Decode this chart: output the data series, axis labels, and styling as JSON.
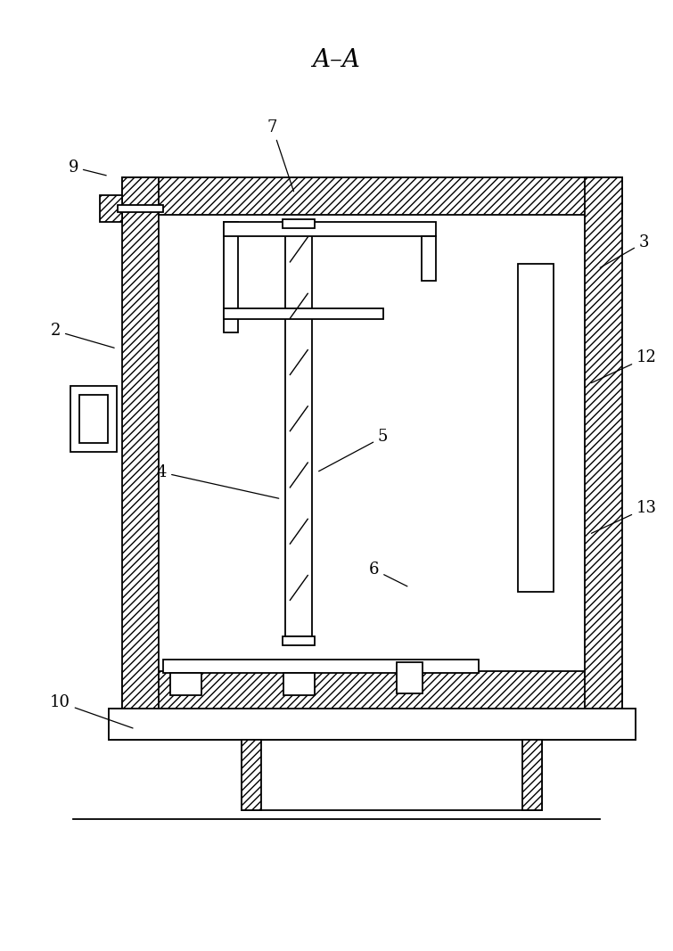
{
  "title": "A–A",
  "title_fontsize": 20,
  "fig_width": 7.55,
  "fig_height": 10.67,
  "bg_color": "#ffffff",
  "line_color": "#000000",
  "label_fontsize": 13,
  "lw": 1.3
}
